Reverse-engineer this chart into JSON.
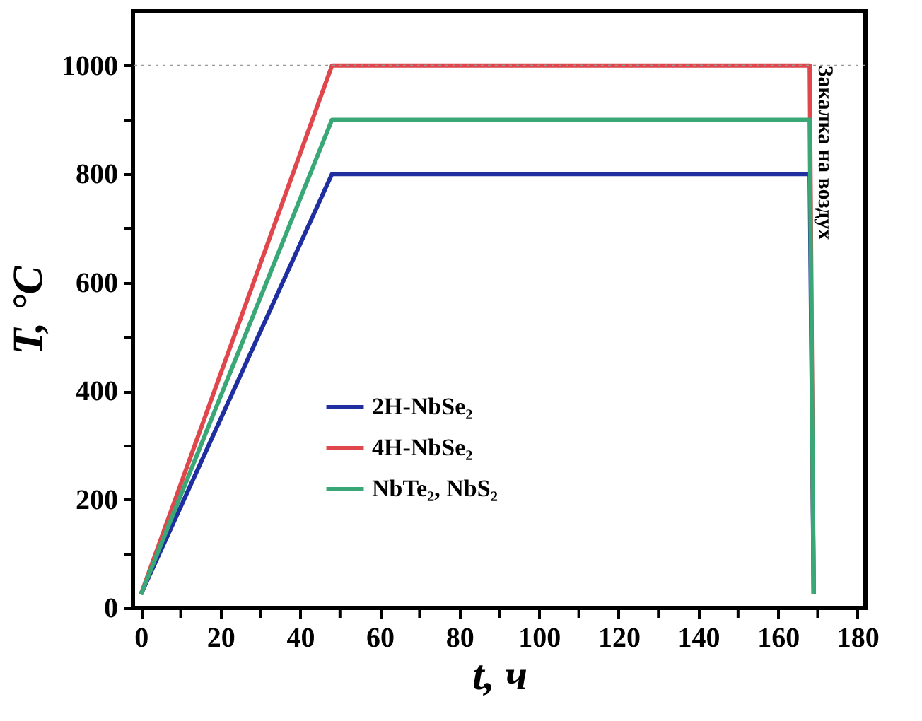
{
  "chart_data": {
    "type": "line",
    "xlabel": "t, ч",
    "ylabel": "T, °C",
    "xlim": [
      -2,
      182
    ],
    "ylim": [
      0,
      1100
    ],
    "xticks": [
      0,
      {
        "value": 10,
        "label": null
      },
      20,
      {
        "value": 30,
        "label": null
      },
      40,
      {
        "value": 50,
        "label": null
      },
      60,
      {
        "value": 70,
        "label": null
      },
      80,
      {
        "value": 90,
        "label": null
      },
      100,
      {
        "value": 110,
        "label": null
      },
      120,
      {
        "value": 130,
        "label": null
      },
      140,
      {
        "value": 150,
        "label": null
      },
      160,
      {
        "value": 170,
        "label": null
      },
      180
    ],
    "yticks": [
      0,
      {
        "value": 100,
        "label": null
      },
      200,
      {
        "value": 300,
        "label": null
      },
      400,
      {
        "value": 500,
        "label": null
      },
      600,
      {
        "value": 700,
        "label": null
      },
      800,
      {
        "value": 900,
        "label": null
      },
      1000
    ],
    "series": [
      {
        "name": "2H-NbSe₂",
        "color": "#1f2fa0",
        "x": [
          0,
          48,
          168,
          169
        ],
        "values": [
          25,
          800,
          800,
          25
        ]
      },
      {
        "name": "4H-NbSe₂",
        "color": "#e0474c",
        "x": [
          0,
          48,
          168,
          169
        ],
        "values": [
          25,
          1000,
          1000,
          25
        ]
      },
      {
        "name": "NbTe₂, NbS₂",
        "color": "#3aa776",
        "x": [
          0,
          48,
          168,
          169
        ],
        "values": [
          25,
          900,
          900,
          25
        ]
      }
    ],
    "ref_lines": [
      {
        "axis": "y",
        "value": 1000,
        "color": "#999999",
        "line_style": "dotted"
      }
    ],
    "annotations": [
      {
        "text": "Закалка на воздух",
        "x": 172,
        "y": 1000
      }
    ],
    "legend": "bottom left",
    "grid": false,
    "marker": "none",
    "line_style": "solid"
  }
}
